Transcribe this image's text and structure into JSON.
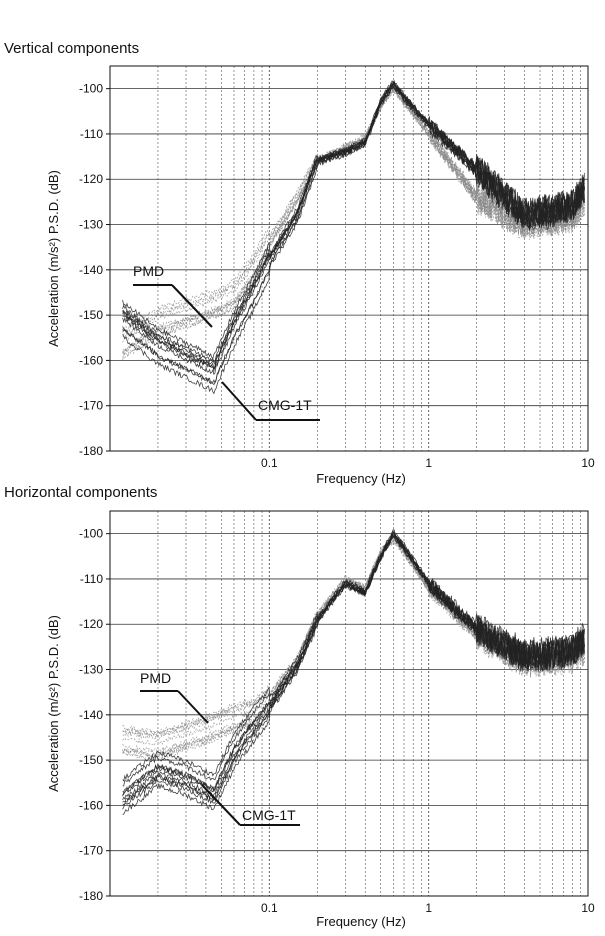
{
  "chart_data": [
    {
      "type": "line",
      "title": "Vertical components",
      "xlabel": "Frequency (Hz)",
      "ylabel": "Acceleration (m/s²) P.S.D. (dB)",
      "xscale": "log",
      "xlim": [
        0.01,
        10
      ],
      "ylim": [
        -180,
        -95
      ],
      "x_ticks": [
        0.1,
        1,
        10
      ],
      "x_tick_labels": [
        "0.1",
        "1",
        "10"
      ],
      "y_ticks": [
        -180,
        -170,
        -160,
        -150,
        -140,
        -130,
        -120,
        -110,
        -100
      ],
      "y_tick_labels": [
        "-180",
        "-170",
        "-160",
        "-150",
        "-140",
        "-130",
        "-120",
        "-110",
        "-100"
      ],
      "grid": true,
      "annotations": [
        {
          "text": "PMD",
          "x": 0.042,
          "y": -152
        },
        {
          "text": "CMG-1T",
          "x": 0.048,
          "y": -165
        }
      ],
      "series": [
        {
          "name": "PMD",
          "color": "#888888",
          "x": [
            0.012,
            0.02,
            0.03,
            0.045,
            0.06,
            0.08,
            0.1,
            0.15,
            0.2,
            0.3,
            0.4,
            0.5,
            0.6,
            0.7,
            1,
            2,
            4,
            8,
            9.5
          ],
          "y": [
            -157,
            -152,
            -150,
            -148,
            -146,
            -140,
            -134,
            -124,
            -116,
            -113,
            -111,
            -104,
            -100,
            -103,
            -110,
            -124,
            -130,
            -128,
            -125
          ]
        },
        {
          "name": "CMG-1T",
          "color": "#222222",
          "x": [
            0.012,
            0.02,
            0.03,
            0.045,
            0.06,
            0.08,
            0.1,
            0.15,
            0.2,
            0.3,
            0.4,
            0.5,
            0.6,
            0.7,
            1,
            2,
            4,
            8,
            9.5
          ],
          "y": [
            -151,
            -157,
            -160,
            -163,
            -153,
            -145,
            -138,
            -128,
            -116,
            -114,
            -112,
            -103,
            -99,
            -102,
            -108,
            -118,
            -128,
            -126,
            -122
          ]
        }
      ]
    },
    {
      "type": "line",
      "title": "Horizontal components",
      "xlabel": "Frequency (Hz)",
      "ylabel": "Acceleration (m/s²) P.S.D. (dB)",
      "xscale": "log",
      "xlim": [
        0.01,
        10
      ],
      "ylim": [
        -180,
        -95
      ],
      "x_ticks": [
        0.1,
        1,
        10
      ],
      "x_tick_labels": [
        "0.1",
        "1",
        "10"
      ],
      "y_ticks": [
        -180,
        -170,
        -160,
        -150,
        -140,
        -130,
        -120,
        -110,
        -100
      ],
      "y_tick_labels": [
        "-180",
        "-170",
        "-160",
        "-150",
        "-140",
        "-130",
        "-120",
        "-110",
        "-100"
      ],
      "grid": true,
      "annotations": [
        {
          "text": "PMD",
          "x": 0.04,
          "y": -143
        },
        {
          "text": "CMG-1T",
          "x": 0.045,
          "y": -157
        }
      ],
      "series": [
        {
          "name": "PMD",
          "color": "#888888",
          "x": [
            0.012,
            0.02,
            0.03,
            0.045,
            0.06,
            0.08,
            0.1,
            0.15,
            0.2,
            0.3,
            0.4,
            0.5,
            0.6,
            0.7,
            1,
            2,
            4,
            8,
            9.5
          ],
          "y": [
            -145,
            -146,
            -144,
            -142,
            -140,
            -139,
            -136,
            -128,
            -118,
            -110,
            -112,
            -104,
            -101,
            -104,
            -112,
            -122,
            -128,
            -127,
            -125
          ]
        },
        {
          "name": "CMG-1T",
          "color": "#222222",
          "x": [
            0.012,
            0.02,
            0.03,
            0.045,
            0.06,
            0.08,
            0.1,
            0.15,
            0.2,
            0.3,
            0.4,
            0.5,
            0.6,
            0.7,
            1,
            2,
            4,
            8,
            9.5
          ],
          "y": [
            -158,
            -152,
            -154,
            -157,
            -148,
            -142,
            -138,
            -129,
            -119,
            -111,
            -113,
            -105,
            -100,
            -103,
            -111,
            -121,
            -127,
            -126,
            -123
          ]
        }
      ]
    }
  ]
}
